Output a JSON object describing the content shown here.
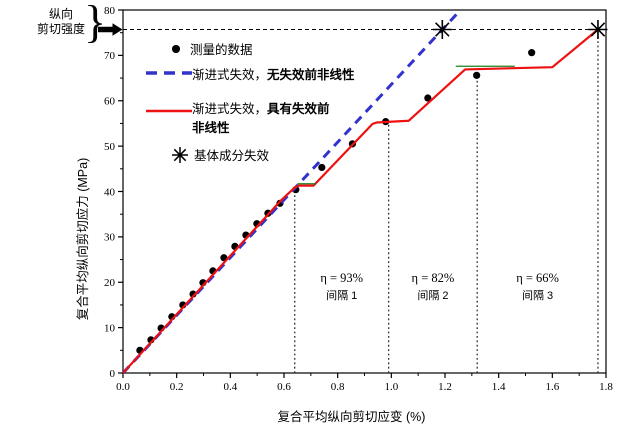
{
  "annotation": {
    "line1": "纵向",
    "line2": "剪切强度",
    "brace": "}"
  },
  "legend": {
    "items": [
      {
        "marker": "black-dot",
        "label": "测量的数据"
      },
      {
        "marker": "blue-dashed-line",
        "label_normal": "渐进式失效，",
        "label_bold": "无失效前非线性"
      },
      {
        "marker": "red-solid-line",
        "label_normal": "渐进式失效，",
        "label_bold_line1": "具有失效前",
        "label_bold_line2": "非线性"
      },
      {
        "marker": "asterisk",
        "label": "基体成分失效"
      }
    ]
  },
  "colors": {
    "measured": "#000000",
    "no_prefailure_nonlinearity": "#3232cc",
    "with_prefailure_nonlinearity": "#ee1111",
    "overlap_green": "#1e7d1e",
    "dropline": "#333333",
    "strength_line": "#000000"
  },
  "chart_data": {
    "type": "line",
    "title": "",
    "xlabel": "复合平均纵向剪切应变 (%)",
    "ylabel": "复合平均纵向剪切应力 (MPa)",
    "xlim": [
      0,
      1.8
    ],
    "ylim": [
      0,
      80
    ],
    "x_ticks": [
      "0.0",
      "0.2",
      "0.4",
      "0.6",
      "0.8",
      "1.0",
      "1.2",
      "1.4",
      "1.6",
      "1.8"
    ],
    "x_minor_step": 0.1,
    "y_ticks": [
      "0",
      "10",
      "20",
      "30",
      "40",
      "50",
      "60",
      "70",
      "80"
    ],
    "y_minor_step": 5,
    "shear_strength": 75.7,
    "legend_position": "upper-left-inside",
    "grid": false,
    "series": [
      {
        "name": "测量的数据",
        "kind": "scatter",
        "color": "#000000",
        "points": [
          [
            0.063,
            5.0
          ],
          [
            0.104,
            7.3
          ],
          [
            0.142,
            9.9
          ],
          [
            0.182,
            12.4
          ],
          [
            0.223,
            15.0
          ],
          [
            0.261,
            17.4
          ],
          [
            0.298,
            19.9
          ],
          [
            0.335,
            22.5
          ],
          [
            0.376,
            25.4
          ],
          [
            0.417,
            27.9
          ],
          [
            0.458,
            30.4
          ],
          [
            0.499,
            32.9
          ],
          [
            0.54,
            35.2
          ],
          [
            0.585,
            37.4
          ],
          [
            0.644,
            40.4
          ],
          [
            0.741,
            45.3
          ],
          [
            0.855,
            50.5
          ],
          [
            0.979,
            55.4
          ],
          [
            1.136,
            60.6
          ],
          [
            1.318,
            65.6
          ],
          [
            1.523,
            70.6
          ]
        ]
      },
      {
        "name": "渐进式失效，无失效前非线性",
        "kind": "dashed-line",
        "color": "#3232cc",
        "points": [
          [
            0,
            0
          ],
          [
            1.258,
            80
          ]
        ]
      },
      {
        "name": "渐进式失效，具有失效前非线性",
        "kind": "solid-line",
        "color": "#ee1111",
        "points": [
          [
            0,
            0
          ],
          [
            0.585,
            37.8
          ],
          [
            0.64,
            40.9
          ],
          [
            0.655,
            41.3
          ],
          [
            0.71,
            41.3
          ],
          [
            0.93,
            54.9
          ],
          [
            0.945,
            55.2
          ],
          [
            1.065,
            55.6
          ],
          [
            1.275,
            66.9
          ],
          [
            1.6,
            67.4
          ],
          [
            1.77,
            75.7
          ]
        ]
      },
      {
        "name": "基体成分失效",
        "kind": "asterisk",
        "color": "#000000",
        "points": [
          [
            1.19,
            75.7
          ],
          [
            1.77,
            75.7
          ]
        ]
      }
    ],
    "overlap_segments": [
      {
        "points": [
          [
            0.65,
            41.7
          ],
          [
            0.72,
            41.7
          ]
        ]
      },
      {
        "points": [
          [
            1.24,
            67.6
          ],
          [
            1.46,
            67.6
          ]
        ]
      }
    ],
    "droplines": [
      {
        "x": 0.64,
        "y_top": 41.0
      },
      {
        "x": 0.99,
        "y_top": 55.4
      },
      {
        "x": 1.32,
        "y_top": 65.6
      },
      {
        "x": 1.77,
        "y_top": 75.7
      }
    ],
    "intervals": [
      {
        "eta": "η = 93%",
        "label": "间隔 1",
        "x_center": 0.815
      },
      {
        "eta": "η = 82%",
        "label": "间隔 2",
        "x_center": 1.155
      },
      {
        "eta": "η = 66%",
        "label": "间隔 3",
        "x_center": 1.545
      }
    ]
  }
}
